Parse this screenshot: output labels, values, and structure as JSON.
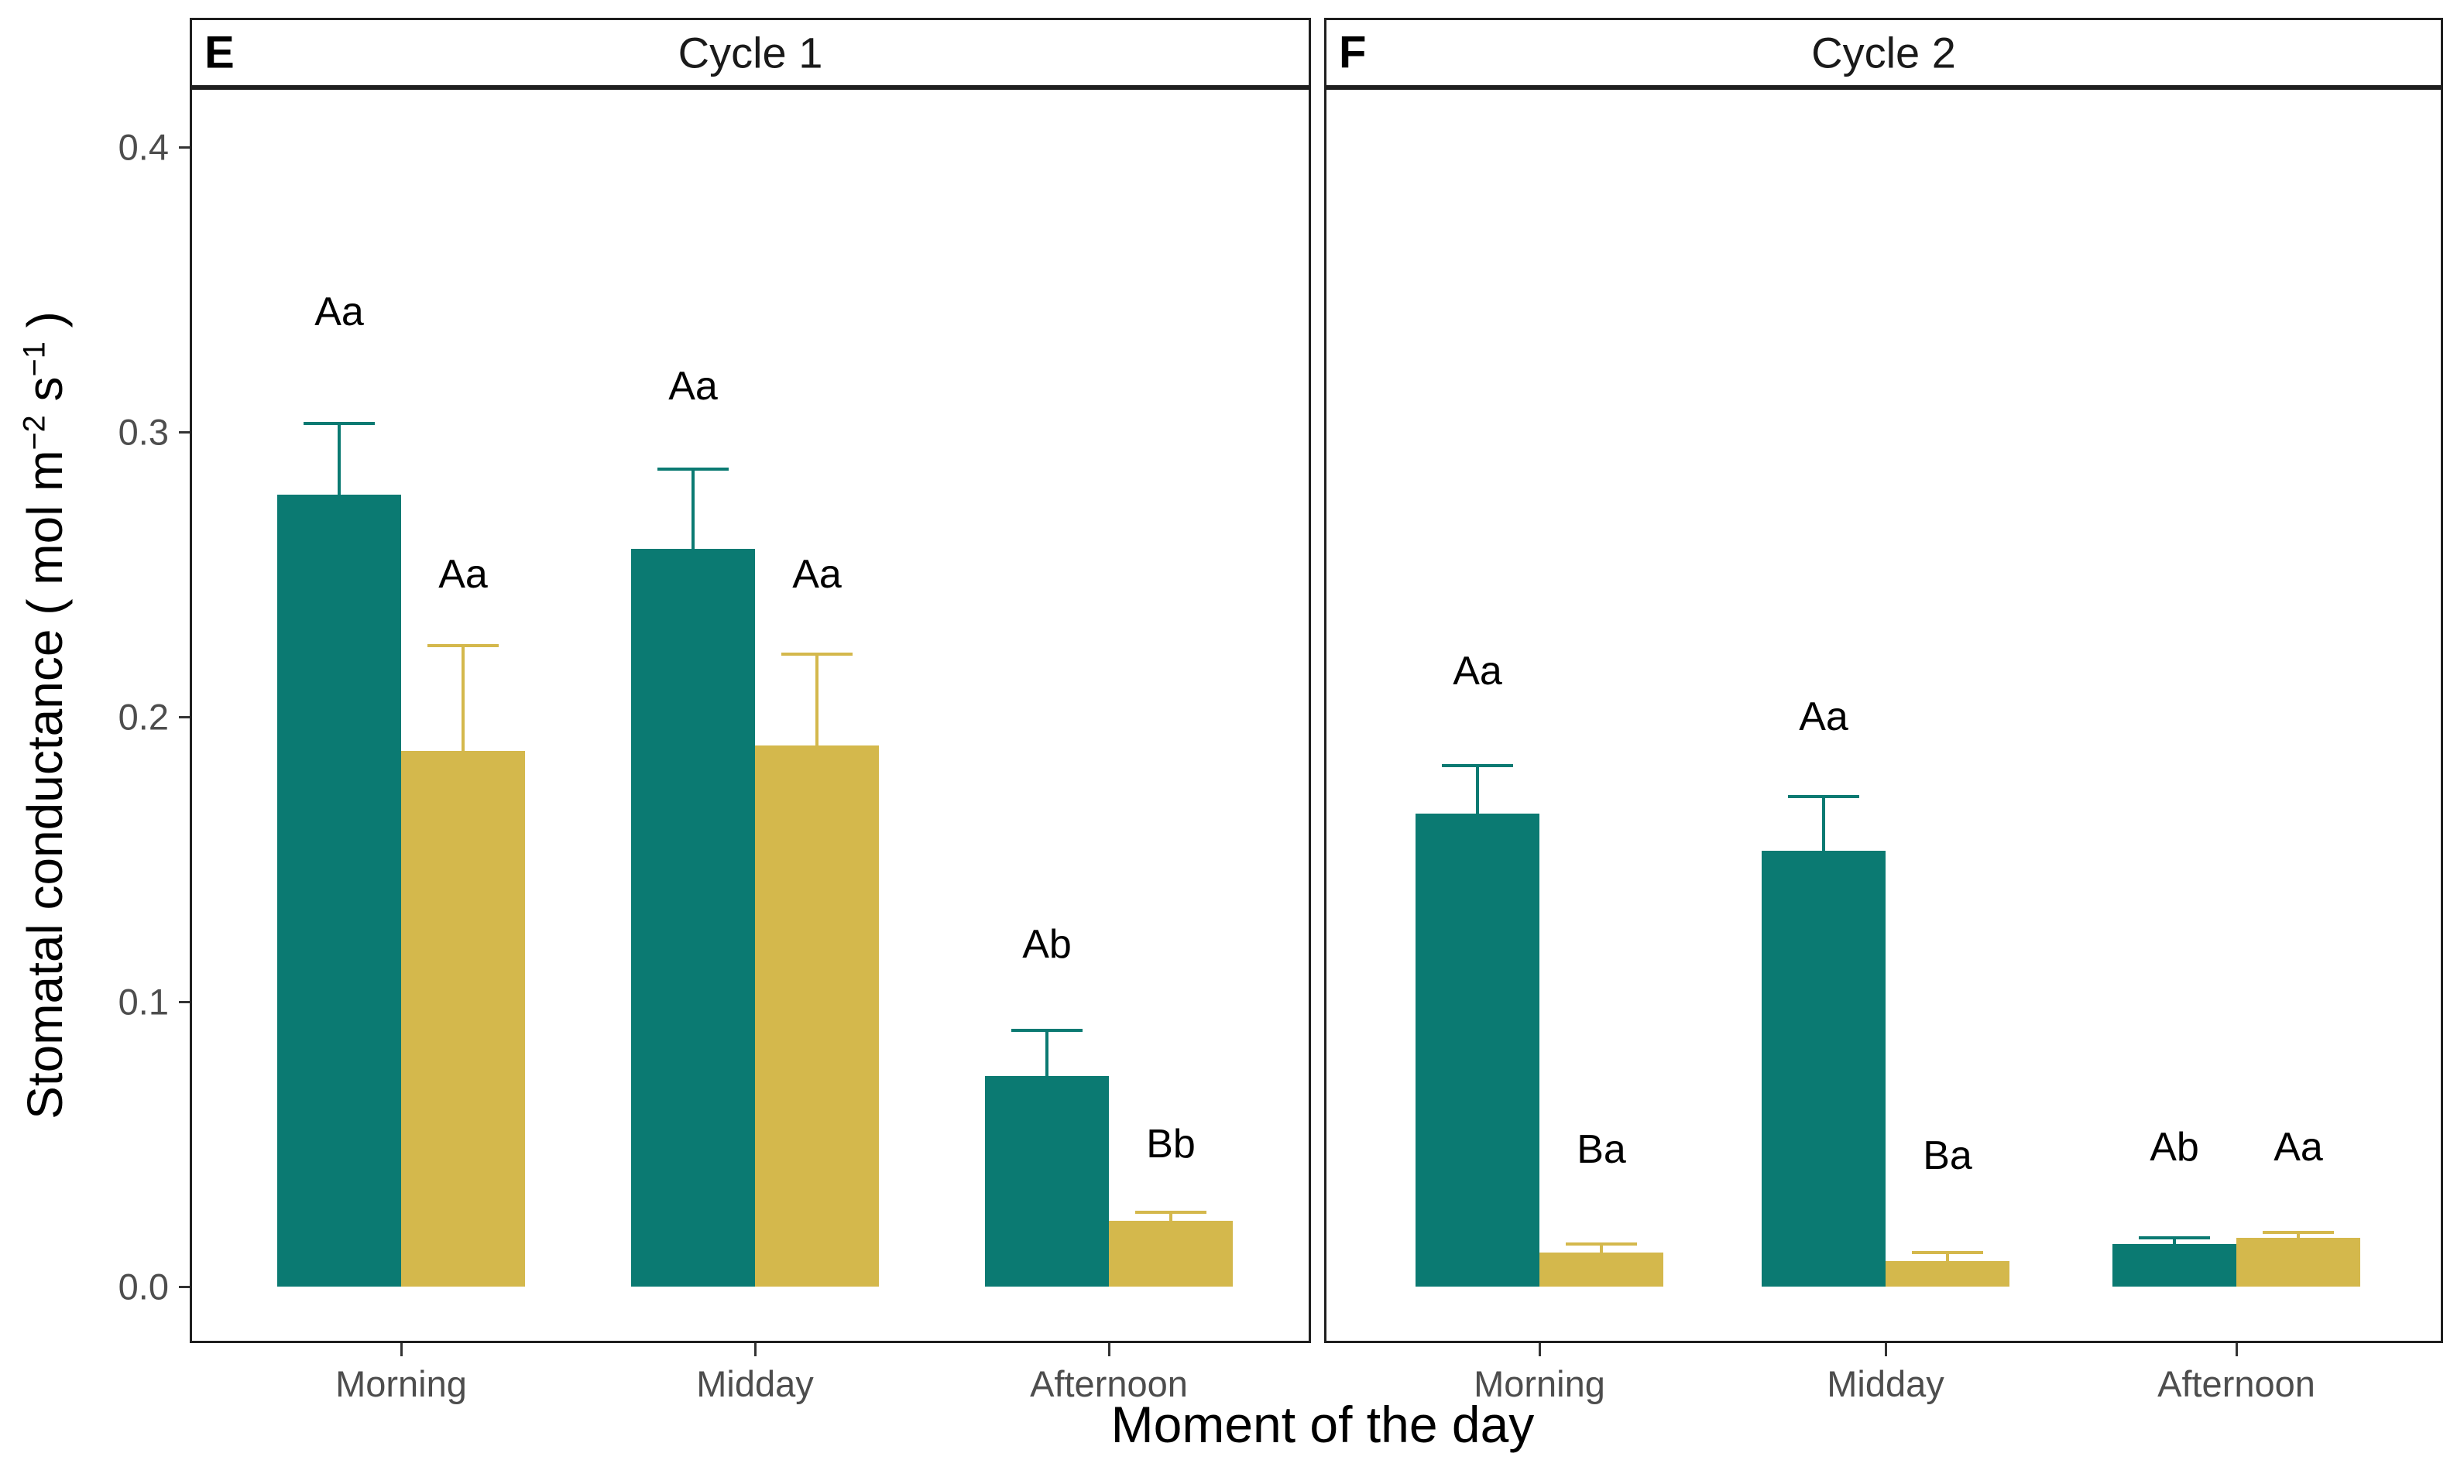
{
  "figure": {
    "xlabel": "Moment of the day",
    "ylabel_text": "Stomatal conductance ( mol m−2 s−1 )",
    "ylabel_parts": {
      "pre": "Stomatal conductance ( mol m",
      "sup1": "−2",
      "mid": " s",
      "sup2": "−1",
      "post": " )"
    },
    "ytick_labels": [
      "0.4",
      "0.3",
      "0.2",
      "0.1",
      "0.0"
    ],
    "colors": {
      "teal": "#0b7a72",
      "yellow": "#d4b84c",
      "axis_text": "#4d4d4d",
      "panel_border": "#1f1f1f"
    }
  },
  "chart_data": [
    {
      "type": "bar",
      "panel_tag": "E",
      "title": "Cycle 1",
      "categories": [
        "Morning",
        "Midday",
        "Afternoon"
      ],
      "ylim": [
        0,
        0.42
      ],
      "yticks": [
        0,
        0.1,
        0.2,
        0.3,
        0.4
      ],
      "grid": false,
      "legend": "none",
      "series": [
        {
          "name": "series-1-teal",
          "color": "#0b7a72",
          "values": [
            0.278,
            0.259,
            0.074
          ],
          "err_hi": [
            0.303,
            0.287,
            0.09
          ],
          "sig_labels": [
            "Aa",
            "Aa",
            "Ab"
          ],
          "sig_label_y": [
            0.342,
            0.316,
            0.12
          ]
        },
        {
          "name": "series-2-yellow",
          "color": "#d4b84c",
          "values": [
            0.188,
            0.19,
            0.023
          ],
          "err_hi": [
            0.225,
            0.222,
            0.026
          ],
          "sig_labels": [
            "Aa",
            "Aa",
            "Bb"
          ],
          "sig_label_y": [
            0.25,
            0.25,
            0.05
          ]
        }
      ]
    },
    {
      "type": "bar",
      "panel_tag": "F",
      "title": "Cycle 2",
      "categories": [
        "Morning",
        "Midday",
        "Afternoon"
      ],
      "ylim": [
        0,
        0.42
      ],
      "yticks": [
        0,
        0.1,
        0.2,
        0.3,
        0.4
      ],
      "grid": false,
      "legend": "none",
      "series": [
        {
          "name": "series-1-teal",
          "color": "#0b7a72",
          "values": [
            0.166,
            0.153,
            0.015
          ],
          "err_hi": [
            0.183,
            0.172,
            0.017
          ],
          "sig_labels": [
            "Aa",
            "Aa",
            "Ab"
          ],
          "sig_label_y": [
            0.216,
            0.2,
            0.049
          ]
        },
        {
          "name": "series-2-yellow",
          "color": "#d4b84c",
          "values": [
            0.012,
            0.009,
            0.017
          ],
          "err_hi": [
            0.015,
            0.012,
            0.019
          ],
          "sig_labels": [
            "Ba",
            "Ba",
            "Aa"
          ],
          "sig_label_y": [
            0.048,
            0.046,
            0.049
          ]
        }
      ]
    }
  ]
}
